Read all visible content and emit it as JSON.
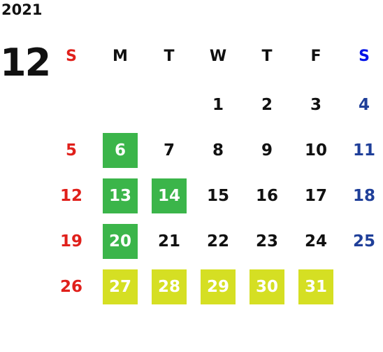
{
  "year": 2021,
  "month": 12,
  "weekdays": [
    "S",
    "M",
    "T",
    "W",
    "T",
    "F",
    "S"
  ],
  "weeks": [
    [
      null,
      null,
      null,
      {
        "day": 1
      },
      {
        "day": 2
      },
      {
        "day": 3
      },
      {
        "day": 4
      }
    ],
    [
      {
        "day": 5
      },
      {
        "day": 6,
        "bg": "#3bb54a"
      },
      {
        "day": 7
      },
      {
        "day": 8
      },
      {
        "day": 9
      },
      {
        "day": 10
      },
      {
        "day": 11
      }
    ],
    [
      {
        "day": 12
      },
      {
        "day": 13,
        "bg": "#3bb54a"
      },
      {
        "day": 14,
        "bg": "#3bb54a"
      },
      {
        "day": 15
      },
      {
        "day": 16
      },
      {
        "day": 17
      },
      {
        "day": 18
      }
    ],
    [
      {
        "day": 19
      },
      {
        "day": 20,
        "bg": "#3bb54a"
      },
      {
        "day": 21
      },
      {
        "day": 22
      },
      {
        "day": 23
      },
      {
        "day": 24
      },
      {
        "day": 25
      }
    ],
    [
      {
        "day": 26
      },
      {
        "day": 27,
        "bg": "#d5df23"
      },
      {
        "day": 28,
        "bg": "#d5df23"
      },
      {
        "day": 29,
        "bg": "#d5df23"
      },
      {
        "day": 30,
        "bg": "#d5df23"
      },
      {
        "day": 31,
        "bg": "#d5df23"
      },
      null
    ]
  ]
}
